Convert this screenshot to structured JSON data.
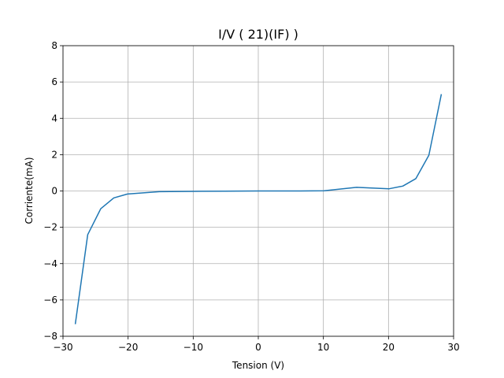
{
  "chart_data": {
    "type": "line",
    "title": "I/V ( 21)(IF) )",
    "xlabel": "Tension (V)",
    "ylabel": "Corriente(mA)",
    "xlim": [
      -30,
      30
    ],
    "ylim": [
      -8,
      8
    ],
    "xticks": [
      -30,
      -20,
      -10,
      0,
      10,
      20,
      30
    ],
    "yticks": [
      -8,
      -6,
      -4,
      -2,
      0,
      2,
      4,
      6,
      8
    ],
    "xtick_labels": [
      "−30",
      "−20",
      "−10",
      "0",
      "10",
      "20",
      "30"
    ],
    "ytick_labels": [
      "−8",
      "−6",
      "−4",
      "−2",
      "0",
      "2",
      "4",
      "6",
      "8"
    ],
    "grid": true,
    "series": [
      {
        "color": "#1f77b4",
        "x": [
          -28.1,
          -26.2,
          -24.2,
          -22.2,
          -20.1,
          -15.2,
          -10.1,
          -5.2,
          0,
          5.1,
          10.1,
          15.1,
          20.1,
          22.2,
          24.2,
          26.2,
          28.1
        ],
        "y": [
          -7.3,
          -2.4,
          -0.98,
          -0.38,
          -0.17,
          -0.04,
          -0.02,
          -0.01,
          0,
          0,
          0.01,
          0.2,
          0.12,
          0.27,
          0.68,
          1.97,
          5.3
        ]
      }
    ]
  }
}
